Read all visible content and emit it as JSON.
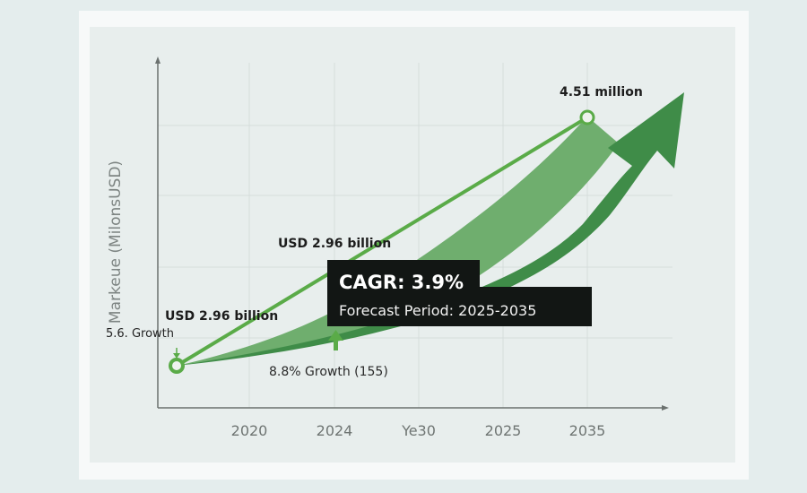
{
  "chart_data": {
    "type": "line",
    "title": "",
    "ylabel": "Markeue (MilonsUSD)",
    "xlabel": "",
    "categories": [
      "2020",
      "2024",
      "Ye30",
      "2025",
      "2035"
    ],
    "grid": true,
    "series": [
      {
        "points": [
          {
            "x": "start",
            "label": "USD 2.96 billion"
          },
          {
            "x": "2035",
            "label": "4.51 million"
          }
        ]
      }
    ],
    "annotations": {
      "start_growth": "5.6. Growth",
      "start_value": "USD 2.96 billion",
      "mid_value": "USD 2.96 billion",
      "mid_growth": "8.8% Growth (155)",
      "end_value": "4.51 million"
    },
    "callout": {
      "cagr": "CAGR: 3.9%",
      "period": "Forecast Period: 2025-2035"
    },
    "colors": {
      "line": "#5aab48",
      "band_light": "#6fae6e",
      "band_dark": "#3f8c48",
      "callout_bg": "#121614"
    }
  }
}
